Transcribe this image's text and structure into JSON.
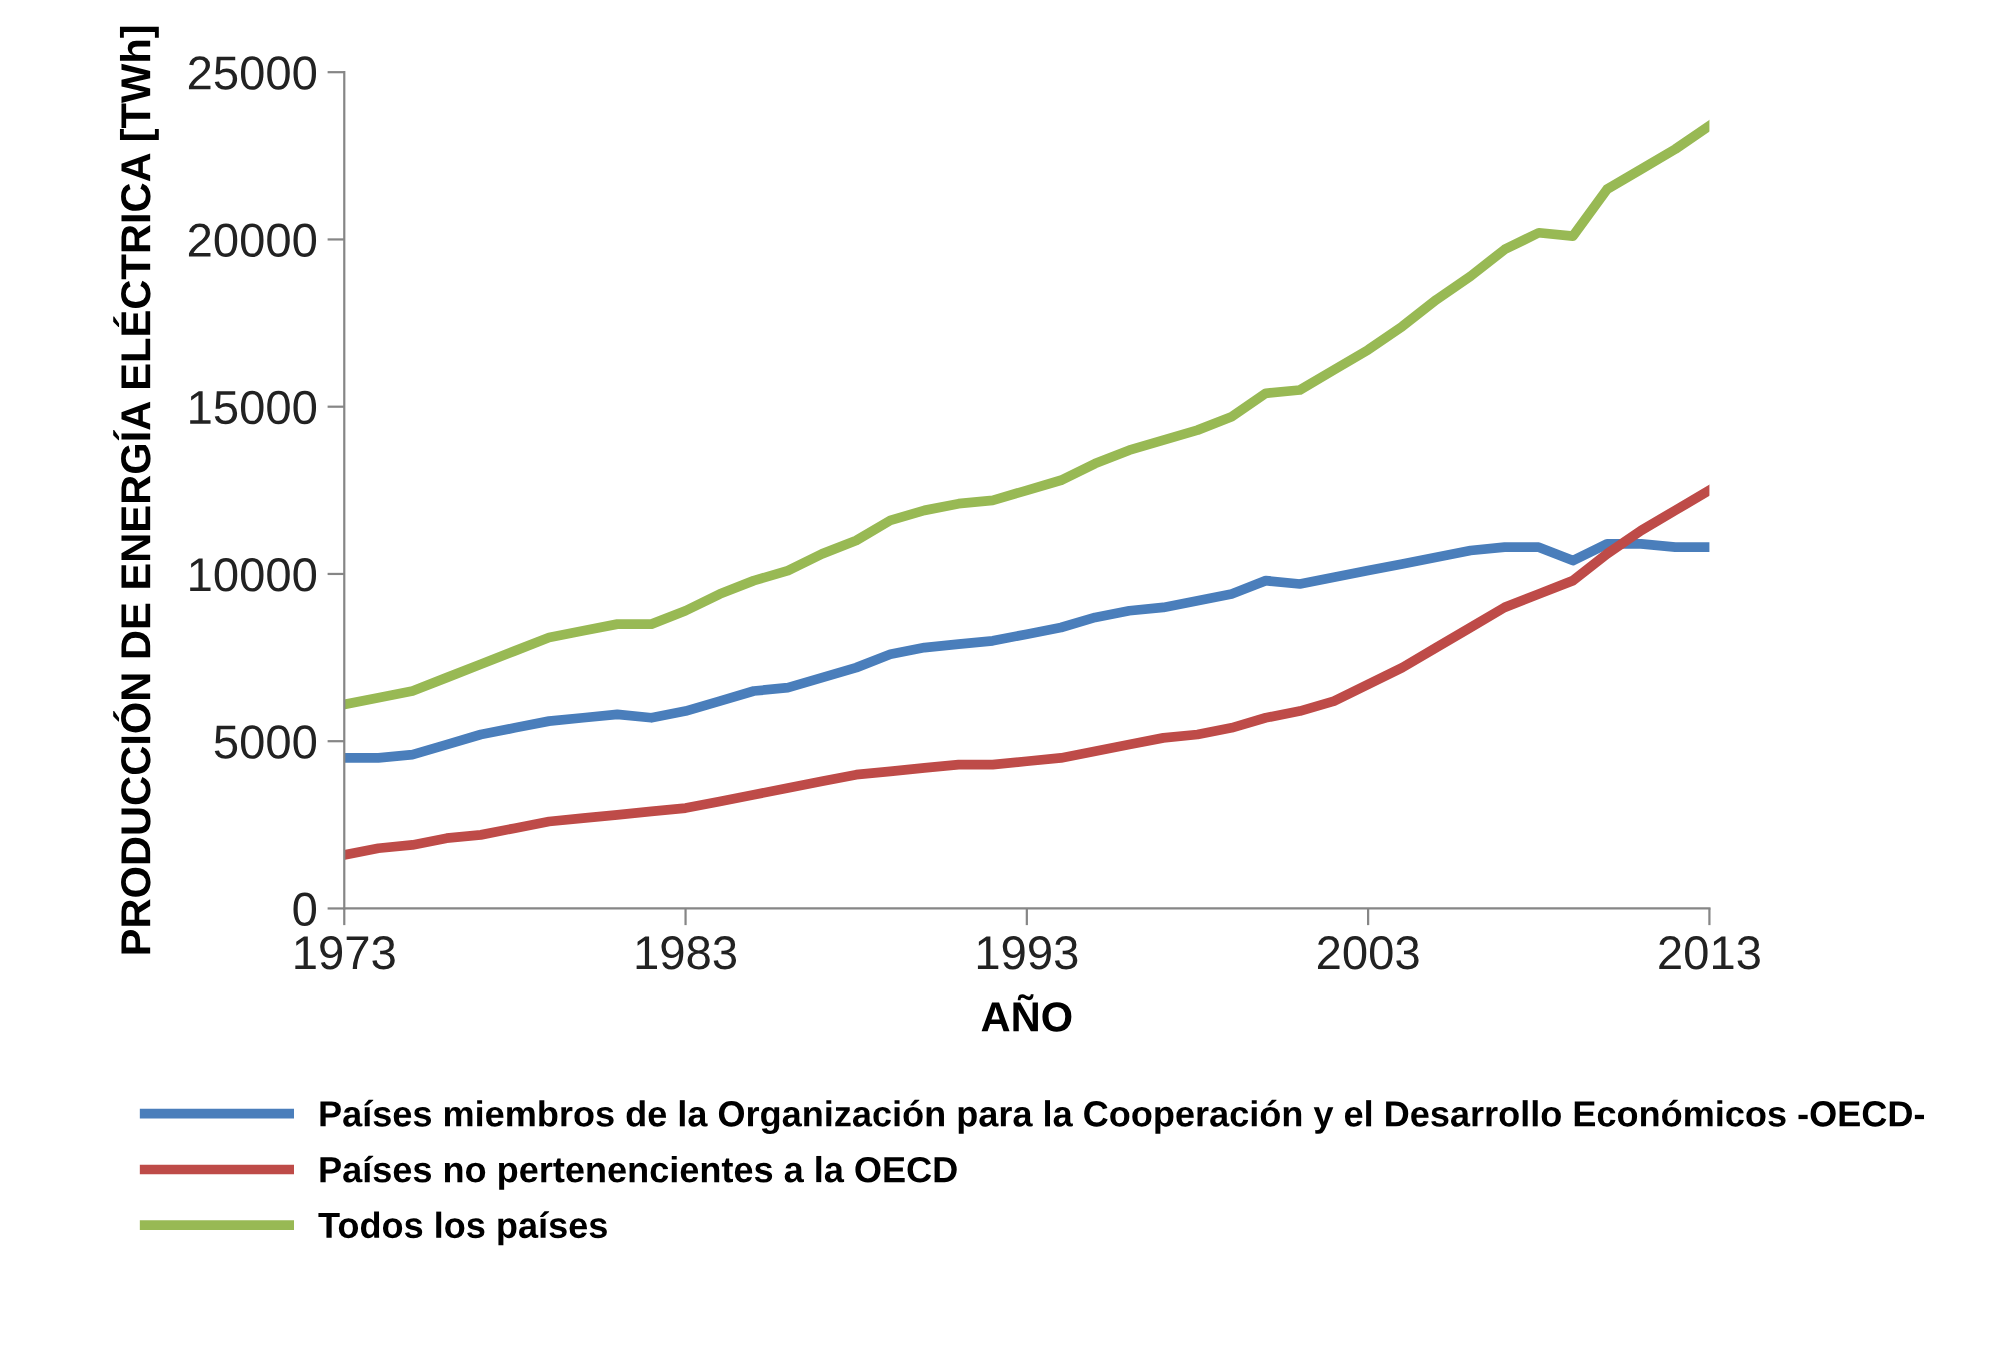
{
  "chart_data": {
    "type": "line",
    "xlabel": "AÑO",
    "ylabel": "PRODUCCIÓN DE ENERGÍA ELÉCTRICA [TWh]",
    "x": [
      1973,
      1974,
      1975,
      1976,
      1977,
      1978,
      1979,
      1980,
      1981,
      1982,
      1983,
      1984,
      1985,
      1986,
      1987,
      1988,
      1989,
      1990,
      1991,
      1992,
      1993,
      1994,
      1995,
      1996,
      1997,
      1998,
      1999,
      2000,
      2001,
      2002,
      2003,
      2004,
      2005,
      2006,
      2007,
      2008,
      2009,
      2010,
      2011,
      2012,
      2013
    ],
    "series": [
      {
        "name": "Países miembros de la Organización para la Cooperación y el Desarrollo Económicos -OECD-",
        "color": "#4a7ebb",
        "values": [
          4500,
          4500,
          4600,
          4900,
          5200,
          5400,
          5600,
          5700,
          5800,
          5700,
          5900,
          6200,
          6500,
          6600,
          6900,
          7200,
          7600,
          7800,
          7900,
          8000,
          8200,
          8400,
          8700,
          8900,
          9000,
          9200,
          9400,
          9800,
          9700,
          9900,
          10100,
          10300,
          10500,
          10700,
          10800,
          10800,
          10400,
          10900,
          10900,
          10800,
          10800
        ]
      },
      {
        "name": "Países no pertenencientes a la OECD",
        "color": "#be4b48",
        "values": [
          1600,
          1800,
          1900,
          2100,
          2200,
          2400,
          2600,
          2700,
          2800,
          2900,
          3000,
          3200,
          3400,
          3600,
          3800,
          4000,
          4100,
          4200,
          4300,
          4300,
          4400,
          4500,
          4700,
          4900,
          5100,
          5200,
          5400,
          5700,
          5900,
          6200,
          6700,
          7200,
          7800,
          8400,
          9000,
          9400,
          9800,
          10600,
          11300,
          11900,
          12500
        ]
      },
      {
        "name": "Todos los países",
        "color": "#98b954",
        "values": [
          6100,
          6300,
          6500,
          6900,
          7300,
          7700,
          8100,
          8300,
          8500,
          8500,
          8900,
          9400,
          9800,
          10100,
          10600,
          11000,
          11600,
          11900,
          12100,
          12200,
          12500,
          12800,
          13300,
          13700,
          14000,
          14300,
          14700,
          15400,
          15500,
          16100,
          16700,
          17400,
          18200,
          18900,
          19700,
          20200,
          20100,
          21500,
          22100,
          22700,
          23400
        ]
      }
    ],
    "xlim": [
      1973,
      2013
    ],
    "xticks": [
      1973,
      1983,
      1993,
      2003,
      2013
    ],
    "ylim": [
      0,
      25000
    ],
    "yticks": [
      0,
      5000,
      10000,
      15000,
      20000,
      25000
    ],
    "grid": false,
    "legend": "bottom",
    "marker": "none",
    "line_style": "solid"
  }
}
